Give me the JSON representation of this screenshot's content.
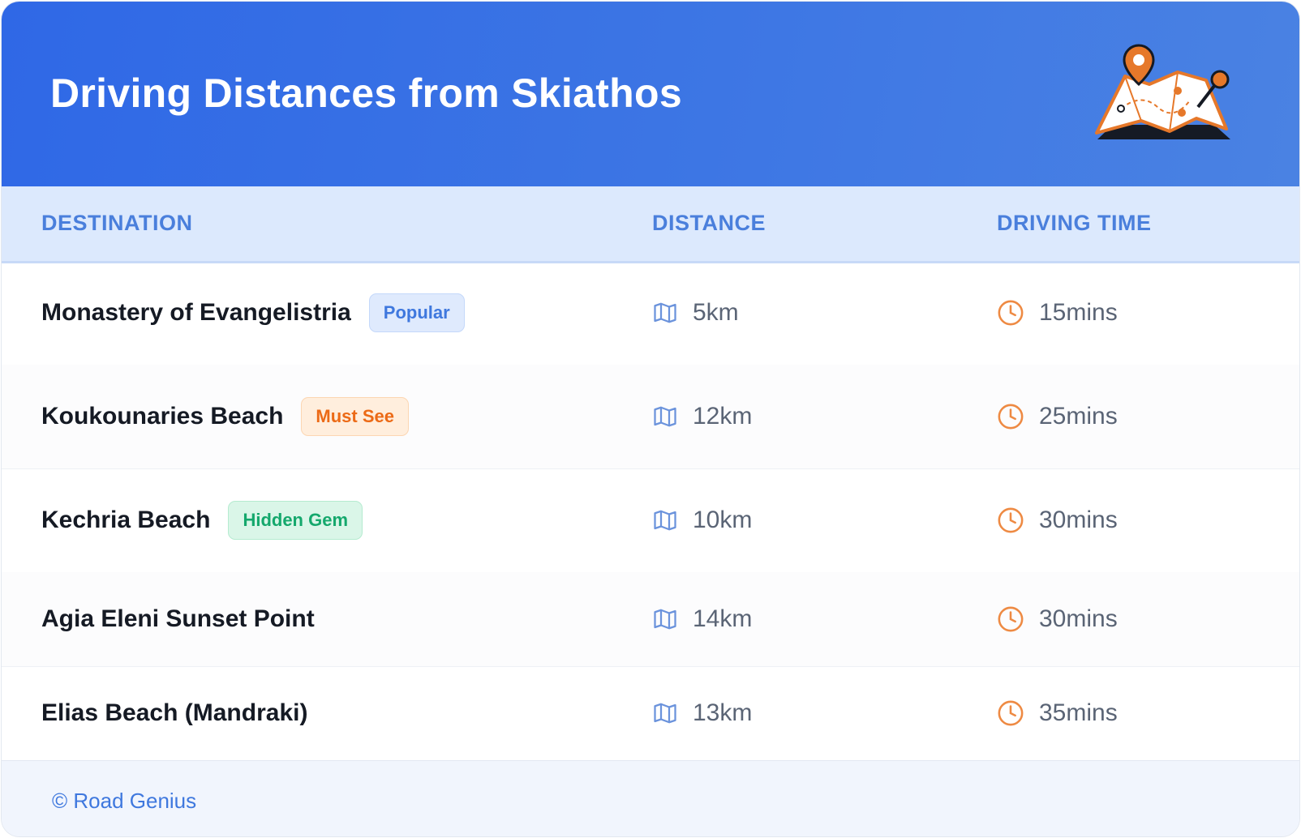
{
  "header": {
    "title": "Driving Distances from Skiathos"
  },
  "table": {
    "columns": [
      "DESTINATION",
      "DISTANCE",
      "DRIVING TIME"
    ],
    "rows": [
      {
        "destination": "Monastery of Evangelistria",
        "badge": "Popular",
        "distance": "5km",
        "time": "15mins"
      },
      {
        "destination": "Koukounaries Beach",
        "badge": "Must See",
        "distance": "12km",
        "time": "25mins"
      },
      {
        "destination": "Kechria Beach",
        "badge": "Hidden Gem",
        "distance": "10km",
        "time": "30mins"
      },
      {
        "destination": "Agia Eleni Sunset Point",
        "distance": "14km",
        "time": "30mins"
      },
      {
        "destination": "Elias Beach (Mandraki)",
        "distance": "13km",
        "time": "35mins"
      }
    ]
  },
  "footer": {
    "text": "© Road Genius"
  }
}
